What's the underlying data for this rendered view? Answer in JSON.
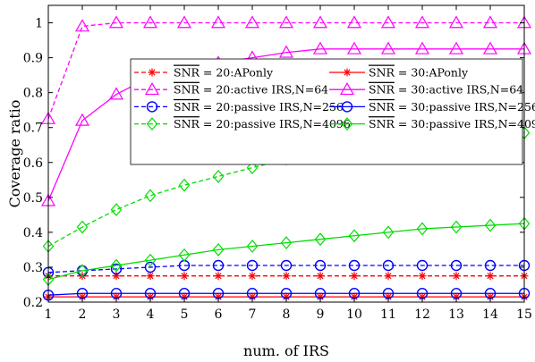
{
  "chart_data": {
    "type": "line",
    "title": "",
    "xlabel": "num. of IRS",
    "ylabel": "Coverage ratio",
    "x": [
      1,
      2,
      3,
      4,
      5,
      6,
      7,
      8,
      9,
      10,
      11,
      12,
      13,
      14,
      15
    ],
    "xlim": [
      1,
      15
    ],
    "ylim": [
      0.2,
      1.05
    ],
    "xticks": [
      "1",
      "2",
      "3",
      "4",
      "5",
      "6",
      "7",
      "8",
      "9",
      "10",
      "11",
      "12",
      "13",
      "14",
      "15"
    ],
    "yticks": [
      "0.2",
      "0.3",
      "0.4",
      "0.5",
      "0.6",
      "0.7",
      "0.8",
      "0.9",
      "1"
    ],
    "ytick_values": [
      0.2,
      0.3,
      0.4,
      0.5,
      0.6,
      0.7,
      0.8,
      0.9,
      1.0
    ],
    "grid": false,
    "legend_position": "top-right, two columns",
    "series": [
      {
        "name": "SNR = 20:APonly",
        "snr": "20",
        "suffix": " = 20:APonly",
        "color": "#ff0000",
        "dash": "dashed",
        "marker": "asterisk",
        "values": [
          0.275,
          0.275,
          0.275,
          0.275,
          0.275,
          0.275,
          0.275,
          0.275,
          0.275,
          0.275,
          0.275,
          0.275,
          0.275,
          0.275,
          0.275
        ]
      },
      {
        "name": "SNR = 30:APonly",
        "snr": "30",
        "suffix": " = 30:APonly",
        "color": "#ff0000",
        "dash": "solid",
        "marker": "asterisk",
        "values": [
          0.215,
          0.215,
          0.215,
          0.215,
          0.215,
          0.215,
          0.215,
          0.215,
          0.215,
          0.215,
          0.215,
          0.215,
          0.215,
          0.215,
          0.215
        ]
      },
      {
        "name": "SNR = 20:active IRS,N=64",
        "snr": "20",
        "suffix": " = 20:active IRS,N=64",
        "color": "#ff00ff",
        "dash": "dashed",
        "marker": "triangle",
        "values": [
          0.725,
          0.99,
          1.0,
          1.0,
          1.0,
          1.0,
          1.0,
          1.0,
          1.0,
          1.0,
          1.0,
          1.0,
          1.0,
          1.0,
          1.0
        ]
      },
      {
        "name": "SNR = 30:active IRS,N=64",
        "snr": "30",
        "suffix": " = 30:active IRS,N=64",
        "color": "#ff00ff",
        "dash": "solid",
        "marker": "triangle",
        "values": [
          0.49,
          0.72,
          0.795,
          0.845,
          0.87,
          0.885,
          0.9,
          0.915,
          0.925,
          0.925,
          0.925,
          0.925,
          0.925,
          0.925,
          0.925
        ]
      },
      {
        "name": "SNR = 20:passive IRS,N=256",
        "snr": "20",
        "suffix": " = 20:passive IRS,N=256",
        "color": "#0000ff",
        "dash": "dashed",
        "marker": "circle",
        "values": [
          0.285,
          0.29,
          0.295,
          0.3,
          0.305,
          0.305,
          0.305,
          0.305,
          0.305,
          0.305,
          0.305,
          0.305,
          0.305,
          0.305,
          0.305
        ]
      },
      {
        "name": "SNR = 30:passive IRS,N=256",
        "snr": "30",
        "suffix": " = 30:passive IRS,N=256",
        "color": "#0000ff",
        "dash": "solid",
        "marker": "circle",
        "values": [
          0.22,
          0.225,
          0.225,
          0.225,
          0.225,
          0.225,
          0.225,
          0.225,
          0.225,
          0.225,
          0.225,
          0.225,
          0.225,
          0.225,
          0.225
        ]
      },
      {
        "name": "SNR = 20:passive IRS,N=4096",
        "snr": "20",
        "suffix": " = 20:passive IRS,N=4096",
        "color": "#00dd00",
        "dash": "dashed",
        "marker": "diamond",
        "values": [
          0.36,
          0.415,
          0.465,
          0.505,
          0.535,
          0.56,
          0.585,
          0.61,
          0.63,
          0.645,
          0.66,
          0.67,
          0.675,
          0.68,
          0.685
        ]
      },
      {
        "name": "SNR = 30:passive IRS,N=4096",
        "snr": "30",
        "suffix": " = 30:passive IRS,N=4096",
        "color": "#00dd00",
        "dash": "solid",
        "marker": "diamond",
        "values": [
          0.265,
          0.29,
          0.305,
          0.32,
          0.335,
          0.35,
          0.36,
          0.37,
          0.38,
          0.39,
          0.4,
          0.41,
          0.415,
          0.42,
          0.425
        ]
      }
    ]
  },
  "legend": {
    "snr_symbol": "SNR"
  }
}
